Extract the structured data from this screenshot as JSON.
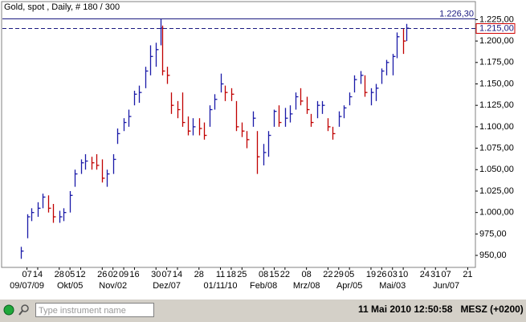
{
  "chart_data": {
    "type": "ohlc",
    "title": "Gold, spot , Daily, # 180 / 300",
    "x": [
      "2009-09-03",
      "2009-09-07",
      "2009-09-10",
      "2009-09-14",
      "2009-09-17",
      "2009-09-21",
      "2009-09-24",
      "2009-09-28",
      "2009-10-01",
      "2009-10-05",
      "2009-10-08",
      "2009-10-12",
      "2009-10-15",
      "2009-10-19",
      "2009-10-22",
      "2009-10-26",
      "2009-10-29",
      "2009-11-02",
      "2009-11-05",
      "2009-11-09",
      "2009-11-12",
      "2009-11-16",
      "2009-11-19",
      "2009-11-23",
      "2009-11-26",
      "2009-11-30",
      "2009-12-03",
      "2009-12-04",
      "2009-12-07",
      "2009-12-10",
      "2009-12-14",
      "2009-12-17",
      "2009-12-21",
      "2009-12-24",
      "2009-12-28",
      "2009-12-31",
      "2010-01-04",
      "2010-01-07",
      "2010-01-11",
      "2010-01-14",
      "2010-01-18",
      "2010-01-21",
      "2010-01-25",
      "2010-01-28",
      "2010-02-01",
      "2010-02-04",
      "2010-02-08",
      "2010-02-11",
      "2010-02-15",
      "2010-02-18",
      "2010-02-22",
      "2010-02-25",
      "2010-03-01",
      "2010-03-04",
      "2010-03-08",
      "2010-03-11",
      "2010-03-15",
      "2010-03-18",
      "2010-03-22",
      "2010-03-25",
      "2010-03-29",
      "2010-04-01",
      "2010-04-05",
      "2010-04-08",
      "2010-04-12",
      "2010-04-15",
      "2010-04-19",
      "2010-04-22",
      "2010-04-26",
      "2010-04-29",
      "2010-05-03",
      "2010-05-06",
      "2010-05-10",
      "2010-05-12"
    ],
    "high": [
      960,
      998,
      1005,
      1012,
      1022,
      1020,
      1010,
      1002,
      1005,
      1025,
      1050,
      1062,
      1068,
      1065,
      1068,
      1062,
      1050,
      1068,
      1098,
      1110,
      1120,
      1142,
      1148,
      1170,
      1195,
      1198,
      1226.3,
      1218,
      1170,
      1140,
      1130,
      1140,
      1112,
      1110,
      1110,
      1105,
      1125,
      1138,
      1162,
      1148,
      1145,
      1130,
      1105,
      1095,
      1118,
      1095,
      1080,
      1095,
      1120,
      1125,
      1122,
      1125,
      1140,
      1145,
      1135,
      1115,
      1130,
      1130,
      1110,
      1100,
      1118,
      1125,
      1140,
      1160,
      1165,
      1160,
      1145,
      1150,
      1168,
      1178,
      1185,
      1210,
      1215,
      1220
    ],
    "low": [
      946,
      970,
      990,
      995,
      1005,
      1000,
      988,
      988,
      990,
      1000,
      1030,
      1045,
      1050,
      1050,
      1050,
      1035,
      1030,
      1045,
      1080,
      1095,
      1100,
      1125,
      1128,
      1145,
      1160,
      1170,
      1195,
      1160,
      1150,
      1115,
      1110,
      1100,
      1090,
      1090,
      1090,
      1085,
      1100,
      1120,
      1140,
      1130,
      1130,
      1095,
      1088,
      1075,
      1100,
      1045,
      1055,
      1065,
      1100,
      1100,
      1100,
      1105,
      1120,
      1125,
      1115,
      1100,
      1110,
      1115,
      1095,
      1085,
      1100,
      1110,
      1125,
      1140,
      1150,
      1135,
      1125,
      1130,
      1150,
      1160,
      1160,
      1180,
      1185,
      1200
    ],
    "close": [
      955,
      995,
      1000,
      1005,
      1018,
      1005,
      995,
      995,
      1000,
      1020,
      1045,
      1058,
      1060,
      1058,
      1055,
      1040,
      1045,
      1062,
      1092,
      1105,
      1112,
      1138,
      1140,
      1165,
      1182,
      1190,
      1215,
      1165,
      1160,
      1125,
      1120,
      1105,
      1095,
      1100,
      1098,
      1090,
      1120,
      1132,
      1150,
      1140,
      1138,
      1100,
      1095,
      1085,
      1110,
      1065,
      1070,
      1090,
      1118,
      1105,
      1110,
      1115,
      1135,
      1130,
      1120,
      1105,
      1125,
      1125,
      1100,
      1092,
      1112,
      1122,
      1135,
      1155,
      1160,
      1140,
      1140,
      1145,
      1165,
      1175,
      1182,
      1205,
      1200,
      1215
    ],
    "up_color": "#1a1aa8",
    "down_color": "#c00000",
    "xlim": [
      "2009-08-22",
      "2010-06-26"
    ],
    "xticks": [
      {
        "value": "2009-09-07",
        "label": "07"
      },
      {
        "value": "2009-09-14",
        "label": "14"
      },
      {
        "value": "2009-09-28",
        "label": "28"
      },
      {
        "value": "2009-10-05",
        "label": "05"
      },
      {
        "value": "2009-10-12",
        "label": "12"
      },
      {
        "value": "2009-10-26",
        "label": "26"
      },
      {
        "value": "2009-11-02",
        "label": "02"
      },
      {
        "value": "2009-11-09",
        "label": "09"
      },
      {
        "value": "2009-11-16",
        "label": "16"
      },
      {
        "value": "2009-11-30",
        "label": "30"
      },
      {
        "value": "2009-12-07",
        "label": "07"
      },
      {
        "value": "2009-12-14",
        "label": "14"
      },
      {
        "value": "2009-12-28",
        "label": "28"
      },
      {
        "value": "2010-01-11",
        "label": "11"
      },
      {
        "value": "2010-01-18",
        "label": "18"
      },
      {
        "value": "2010-01-25",
        "label": "25"
      },
      {
        "value": "2010-02-08",
        "label": "08"
      },
      {
        "value": "2010-02-15",
        "label": "15"
      },
      {
        "value": "2010-02-22",
        "label": "22"
      },
      {
        "value": "2010-03-08",
        "label": "08"
      },
      {
        "value": "2010-03-22",
        "label": "22"
      },
      {
        "value": "2010-03-29",
        "label": "29"
      },
      {
        "value": "2010-04-05",
        "label": "05"
      },
      {
        "value": "2010-04-19",
        "label": "19"
      },
      {
        "value": "2010-04-26",
        "label": "26"
      },
      {
        "value": "2010-05-03",
        "label": "03"
      },
      {
        "value": "2010-05-10",
        "label": "10"
      },
      {
        "value": "2010-05-24",
        "label": "24"
      },
      {
        "value": "2010-05-31",
        "label": "31"
      },
      {
        "value": "2010-06-07",
        "label": "07"
      },
      {
        "value": "2010-06-21",
        "label": "21"
      }
    ],
    "xticks_major": [
      {
        "value": "2009-09-07",
        "label": "09/07/09"
      },
      {
        "value": "2009-10-05",
        "label": "Okt/05"
      },
      {
        "value": "2009-11-02",
        "label": "Nov/02"
      },
      {
        "value": "2009-12-07",
        "label": "Dez/07"
      },
      {
        "value": "2010-01-11",
        "label": "01/11/10"
      },
      {
        "value": "2010-02-08",
        "label": "Feb/08"
      },
      {
        "value": "2010-03-08",
        "label": "Mrz/08"
      },
      {
        "value": "2010-04-05",
        "label": "Apr/05"
      },
      {
        "value": "2010-05-03",
        "label": "Mai/03"
      },
      {
        "value": "2010-06-07",
        "label": "Jun/07"
      }
    ],
    "ylim": [
      936,
      1231
    ],
    "yticks": [
      {
        "value": 950,
        "label": "950,00"
      },
      {
        "value": 975,
        "label": "975,00"
      },
      {
        "value": 1000,
        "label": "1.000,00"
      },
      {
        "value": 1025,
        "label": "1.025,00"
      },
      {
        "value": 1050,
        "label": "1.050,00"
      },
      {
        "value": 1075,
        "label": "1.075,00"
      },
      {
        "value": 1100,
        "label": "1.100,00"
      },
      {
        "value": 1125,
        "label": "1.125,00"
      },
      {
        "value": 1150,
        "label": "1.150,00"
      },
      {
        "value": 1175,
        "label": "1.175,00"
      },
      {
        "value": 1200,
        "label": "1.200,00"
      },
      {
        "value": 1225,
        "label": "1.225,00"
      }
    ],
    "levels": [
      {
        "value": 1226.3,
        "label": "1.226,30",
        "style": "solid",
        "color": "#1a1a80",
        "label_border": "none"
      },
      {
        "value": 1215,
        "label": "1.215,00",
        "style": "dashed",
        "color": "#1a1a80",
        "label_border": "#d00000"
      }
    ]
  },
  "status_bar": {
    "search_placeholder": "Type instrument name",
    "date_time": "11 Mai 2010 12:50:58",
    "timezone": "MESZ (+0200)"
  }
}
